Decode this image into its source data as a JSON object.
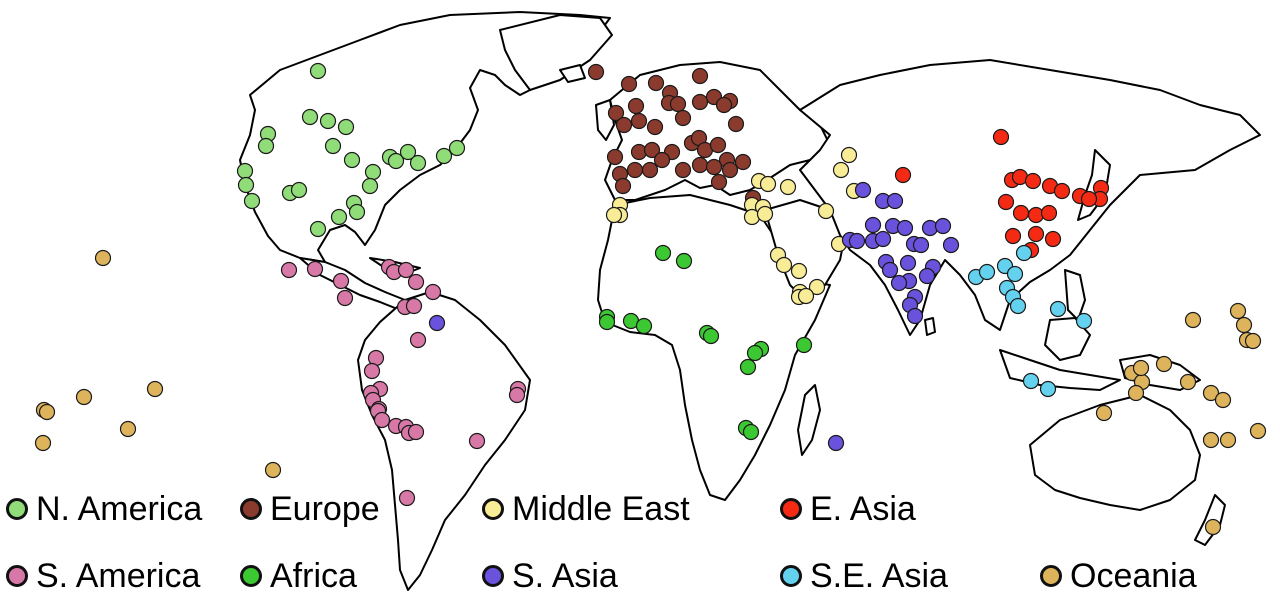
{
  "regions": [
    {
      "key": "na",
      "label": "N. America",
      "color": "#90dc78"
    },
    {
      "key": "eu",
      "label": "Europe",
      "color": "#8b3a2e"
    },
    {
      "key": "me",
      "label": "Middle East",
      "color": "#f8ec96"
    },
    {
      "key": "ea",
      "label": "E. Asia",
      "color": "#f52a14"
    },
    {
      "key": "sa",
      "label": "S. America",
      "color": "#d878a6"
    },
    {
      "key": "af",
      "label": "Africa",
      "color": "#3cc832"
    },
    {
      "key": "sas",
      "label": "S. Asia",
      "color": "#6a52dc"
    },
    {
      "key": "sea",
      "label": "S.E. Asia",
      "color": "#64d2ee"
    },
    {
      "key": "oc",
      "label": "Oceania",
      "color": "#ddb45c"
    }
  ]
}
